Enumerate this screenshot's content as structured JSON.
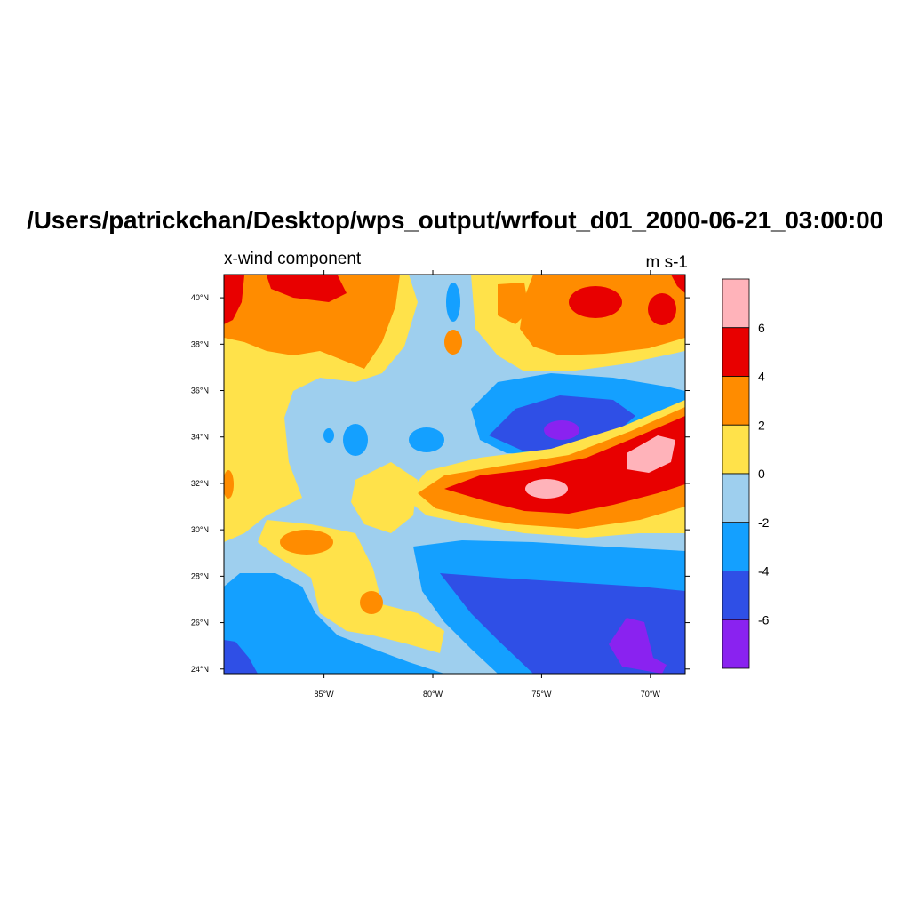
{
  "title": "/Users/patrickchan/Desktop/wps_output/wrfout_d01_2000-06-21_03:00:00",
  "field_label": "x-wind component",
  "units": "m s-1",
  "map": {
    "lon_range": [
      -89.6,
      -68.4
    ],
    "lat_range": [
      23.8,
      41.0
    ],
    "lon_ticks": [
      {
        "value": -85,
        "label": "85°W"
      },
      {
        "value": -80,
        "label": "80°W"
      },
      {
        "value": -75,
        "label": "75°W"
      },
      {
        "value": -70,
        "label": "70°W"
      }
    ],
    "lat_ticks": [
      {
        "value": 24,
        "label": "24°N"
      },
      {
        "value": 26,
        "label": "26°N"
      },
      {
        "value": 28,
        "label": "28°N"
      },
      {
        "value": 30,
        "label": "30°N"
      },
      {
        "value": 32,
        "label": "32°N"
      },
      {
        "value": 34,
        "label": "34°N"
      },
      {
        "value": 36,
        "label": "36°N"
      },
      {
        "value": 38,
        "label": "38°N"
      },
      {
        "value": 40,
        "label": "40°N"
      }
    ]
  },
  "colorbar": {
    "levels": [
      {
        "range": [
          6,
          8
        ],
        "color": "#ffb3ba"
      },
      {
        "range": [
          4,
          6
        ],
        "color": "#e80000"
      },
      {
        "range": [
          2,
          4
        ],
        "color": "#ff8c00"
      },
      {
        "range": [
          0,
          2
        ],
        "color": "#ffe24a"
      },
      {
        "range": [
          -2,
          0
        ],
        "color": "#9ecfee"
      },
      {
        "range": [
          -4,
          -2
        ],
        "color": "#14a0ff"
      },
      {
        "range": [
          -6,
          -4
        ],
        "color": "#2f4fe6"
      },
      {
        "range": [
          -8,
          -6
        ],
        "color": "#8a22f0"
      }
    ],
    "tick_labels": [
      "6",
      "4",
      "2",
      "0",
      "-2",
      "-4",
      "-6"
    ]
  }
}
